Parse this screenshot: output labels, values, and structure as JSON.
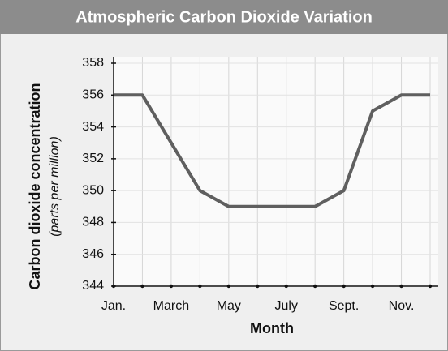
{
  "chart_data": {
    "type": "line",
    "title": "Atmospheric Carbon Dioxide Variation",
    "x_label": "Month",
    "y_label": "Carbon dioxide concentration",
    "y_label_units": "(parts per million)",
    "categories": [
      "Jan.",
      null,
      "March",
      null,
      "May",
      null,
      "July",
      null,
      "Sept.",
      null,
      "Nov.",
      null
    ],
    "values": [
      356,
      356,
      353,
      350,
      349,
      349,
      349,
      349,
      350,
      355,
      356,
      356
    ],
    "color": "#5f5f5f",
    "ylim": [
      344,
      358
    ],
    "yticks": [
      344,
      346,
      348,
      350,
      352,
      354,
      356,
      358
    ],
    "grid": true
  }
}
